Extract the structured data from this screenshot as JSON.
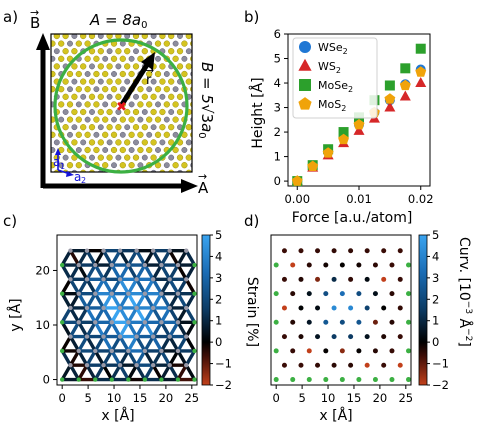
{
  "panels": {
    "a": {
      "label": "a)",
      "header": "A = 8a",
      "header_sub": "0",
      "side": "B = 5",
      "side_root": "√3",
      "side_tail": "a",
      "side_sub": "0",
      "vec_A": "A",
      "vec_B": "B",
      "vec_r": "r",
      "vec_a1": "a",
      "vec_a1_sub": "1",
      "vec_a2": "a",
      "vec_a2_sub": "2",
      "colors": {
        "circle": "#3cb043",
        "atom_metal": "#8c8c9c",
        "atom_chalcogen": "#d4c420",
        "center": "#e8161b",
        "vector": "#1414d8"
      }
    },
    "b": {
      "label": "b)"
    },
    "c": {
      "label": "c)"
    },
    "d": {
      "label": "d)"
    }
  },
  "chart_data": [
    {
      "id": "b",
      "type": "scatter",
      "xlabel": "Force [a.u./atom]",
      "ylabel": "Height [Å]",
      "xlim": [
        -0.0015,
        0.0215
      ],
      "ylim": [
        -0.2,
        6
      ],
      "xticks": [
        0.0,
        0.01,
        0.02
      ],
      "xtick_labels": [
        "0.00",
        "0.01",
        "0.02"
      ],
      "yticks": [
        0,
        1,
        2,
        3,
        4,
        5,
        6
      ],
      "legend": "top-left",
      "x": [
        0,
        0.0025,
        0.005,
        0.0075,
        0.01,
        0.0125,
        0.015,
        0.0175,
        0.02
      ],
      "series": [
        {
          "name": "WSe",
          "name_sub": "2",
          "marker": "circle",
          "color": "#1f77d4",
          "values": [
            0,
            0.6,
            1.2,
            1.75,
            2.3,
            2.8,
            3.3,
            3.95,
            4.55
          ]
        },
        {
          "name": "WS",
          "name_sub": "2",
          "marker": "triangle",
          "color": "#d62728",
          "values": [
            0,
            0.55,
            1.05,
            1.55,
            2.05,
            2.55,
            3.0,
            3.45,
            4.0
          ]
        },
        {
          "name": "MoSe",
          "name_sub": "2",
          "marker": "square",
          "color": "#2ca02c",
          "values": [
            0,
            0.65,
            1.3,
            2.0,
            2.6,
            3.3,
            3.9,
            4.6,
            5.4
          ]
        },
        {
          "name": "MoS",
          "name_sub": "2",
          "marker": "pentagon",
          "color": "#f0a30a",
          "values": [
            0,
            0.6,
            1.15,
            1.7,
            2.3,
            2.8,
            3.35,
            3.9,
            4.45
          ]
        }
      ]
    },
    {
      "id": "c",
      "type": "heatmap",
      "xlabel": "x [Å]",
      "ylabel": "y [Å]",
      "xlim": [
        -1,
        26
      ],
      "ylim": [
        -1,
        26.5
      ],
      "xticks": [
        0,
        5,
        10,
        15,
        20,
        25
      ],
      "yticks": [
        0,
        10,
        20
      ],
      "colorbar": {
        "label": "Strain [%]",
        "ticks": [
          -2,
          -1,
          0,
          1,
          2,
          3,
          4,
          5
        ],
        "range": [
          -2,
          5
        ]
      },
      "lattice": {
        "nx": 8,
        "ny": 5,
        "a0": 3.19
      }
    },
    {
      "id": "d",
      "type": "heatmap",
      "xlabel": "x [Å]",
      "xlim": [
        -1,
        26
      ],
      "ylim": [
        -1,
        26.5
      ],
      "xticks": [
        0,
        5,
        10,
        15,
        20,
        25
      ],
      "colorbar": {
        "label": "Curv. [10",
        "label_sup": "−3",
        "label_tail": " Å",
        "label_sup2": "−2",
        "label_end": "]",
        "ticks": [
          -2,
          -1,
          0,
          1,
          2,
          3,
          4,
          5
        ],
        "range": [
          -2,
          5
        ]
      },
      "lattice": {
        "nx": 8,
        "ny": 5,
        "a0": 3.19
      }
    }
  ]
}
